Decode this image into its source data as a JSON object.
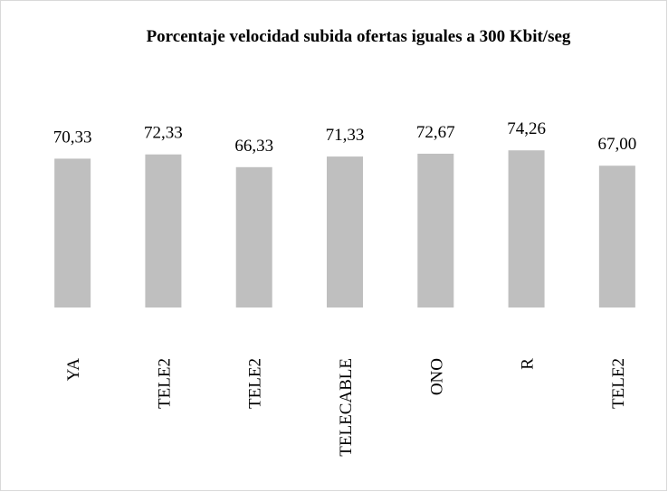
{
  "chart_data": {
    "type": "bar",
    "title": "Porcentaje velocidad subida ofertas iguales a 300 Kbit/seg",
    "categories": [
      "YA",
      "TELE2",
      "TELE2",
      "TELECABLE",
      "ONO",
      "R",
      "TELE2"
    ],
    "values": [
      70.33,
      72.33,
      66.33,
      71.33,
      72.67,
      74.26,
      67.0
    ],
    "value_labels": [
      "70,33",
      "72,33",
      "66,33",
      "71,33",
      "72,67",
      "74,26",
      "67,00"
    ],
    "color": "#bfbfbf"
  }
}
